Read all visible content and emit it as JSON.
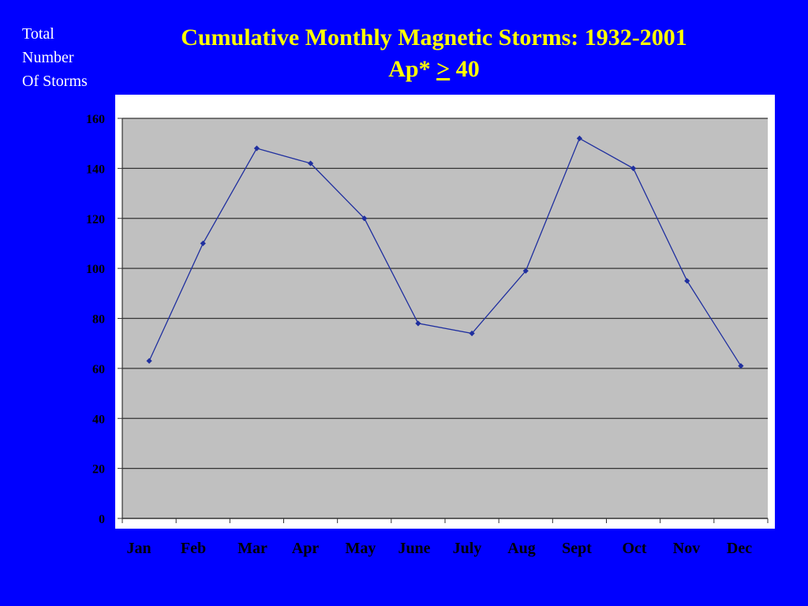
{
  "y_axis_label": [
    "Total",
    "Number",
    "Of Storms"
  ],
  "title": {
    "line1": "Cumulative Monthly Magnetic Storms: 1932-2001",
    "line2_prefix": "Ap*",
    "line2_operator": ">",
    "line2_value": "40"
  },
  "colors": {
    "background": "#0000ff",
    "title": "#ffff00",
    "axis_label": "#ffffff",
    "plot_area": "#c0c0c0",
    "chart_panel": "#ffffff",
    "gridline": "#333333",
    "series": "#1f2f9f",
    "tick_label": "#000000"
  },
  "chart_data": {
    "type": "line",
    "title": "Cumulative Monthly Magnetic Storms: 1932-2001",
    "subtitle": "Ap* > 40",
    "xlabel": "",
    "ylabel": "Total Number Of Storms",
    "categories": [
      "Jan",
      "Feb",
      "Mar",
      "Apr",
      "May",
      "June",
      "July",
      "Aug",
      "Sept",
      "Oct",
      "Nov",
      "Dec"
    ],
    "values": [
      63,
      110,
      148,
      142,
      120,
      78,
      74,
      99,
      152,
      140,
      95,
      61
    ],
    "ylim": [
      0,
      160
    ],
    "yticks": [
      0,
      20,
      40,
      60,
      80,
      100,
      120,
      140,
      160
    ],
    "grid": true,
    "legend": "none"
  }
}
